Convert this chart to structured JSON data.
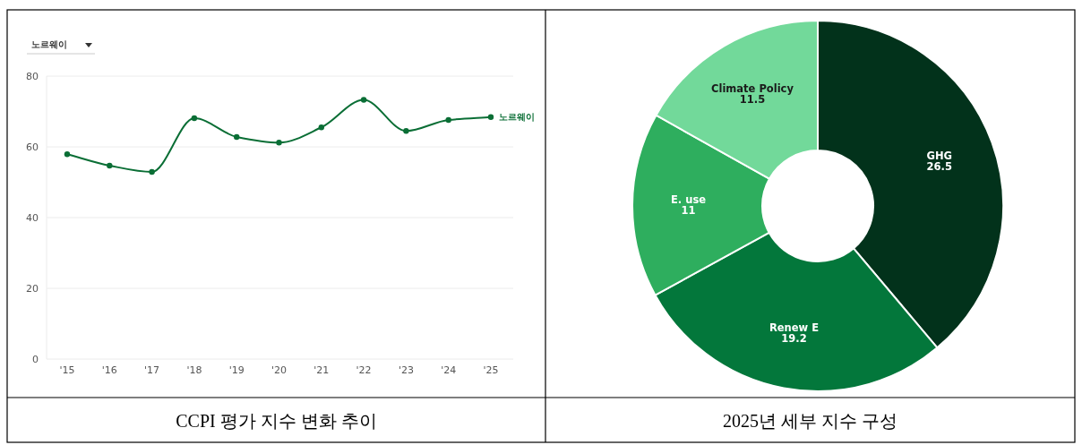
{
  "chart_data": [
    {
      "type": "line",
      "title": "CCPI 평가 지수 변화 추이",
      "annotations": [
        "노르웨이"
      ],
      "categories": [
        "'15",
        "'16",
        "'17",
        "'18",
        "'19",
        "'20",
        "'21",
        "'22",
        "'23",
        "'24",
        "'25"
      ],
      "series": [
        {
          "name": "노르웨이",
          "color": "#0a6e35",
          "values": [
            57.9,
            54.7,
            52.9,
            68.1,
            62.8,
            61.2,
            65.5,
            73.3,
            64.5,
            67.6,
            68.4
          ]
        }
      ],
      "ylim": [
        0,
        80
      ],
      "yticks": [
        0,
        20,
        40,
        60,
        80
      ],
      "grid": "y",
      "marker": "circle",
      "line_style": "solid"
    },
    {
      "type": "donut",
      "title": "2025년 세부 지수 구성",
      "categories": [
        "GHG",
        "Renew E",
        "E. use",
        "Climate Policy"
      ],
      "values": [
        26.5,
        19.2,
        11,
        11.5
      ],
      "colors": [
        "#02321b",
        "#03773b",
        "#2eae5e",
        "#72d99a"
      ],
      "data_labels": true
    }
  ]
}
